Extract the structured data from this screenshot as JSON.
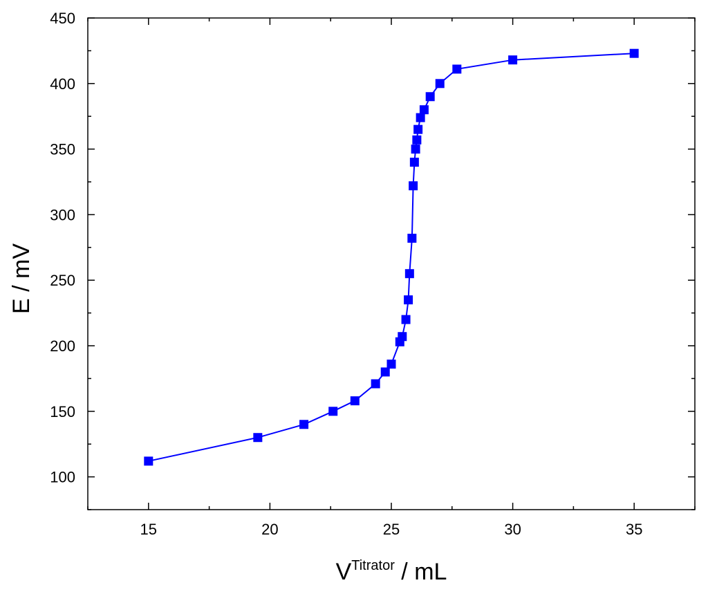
{
  "chart_data": {
    "type": "line",
    "title": "",
    "xlabel": {
      "base": "V",
      "superscript": "Titrator",
      "suffix": " / mL"
    },
    "ylabel": "E / mV",
    "xlim": [
      12.5,
      37.5
    ],
    "ylim": [
      75,
      450
    ],
    "xticks": [
      15,
      20,
      25,
      30,
      35
    ],
    "yticks": [
      100,
      150,
      200,
      250,
      300,
      350,
      400,
      450
    ],
    "grid": false,
    "legend": "none",
    "series": [
      {
        "color": "#0000ff",
        "marker": "square",
        "points": [
          [
            15.0,
            112
          ],
          [
            19.5,
            130
          ],
          [
            21.4,
            140
          ],
          [
            22.6,
            150
          ],
          [
            23.5,
            158
          ],
          [
            24.35,
            171
          ],
          [
            24.75,
            180
          ],
          [
            25.0,
            186
          ],
          [
            25.35,
            203
          ],
          [
            25.45,
            207
          ],
          [
            25.6,
            220
          ],
          [
            25.7,
            235
          ],
          [
            25.75,
            255
          ],
          [
            25.85,
            282
          ],
          [
            25.9,
            322
          ],
          [
            25.95,
            340
          ],
          [
            26.0,
            350
          ],
          [
            26.05,
            357
          ],
          [
            26.1,
            365
          ],
          [
            26.2,
            374
          ],
          [
            26.35,
            380
          ],
          [
            26.6,
            390
          ],
          [
            27.0,
            400
          ],
          [
            27.7,
            411
          ],
          [
            30.0,
            418
          ],
          [
            35.0,
            423
          ]
        ]
      }
    ]
  }
}
